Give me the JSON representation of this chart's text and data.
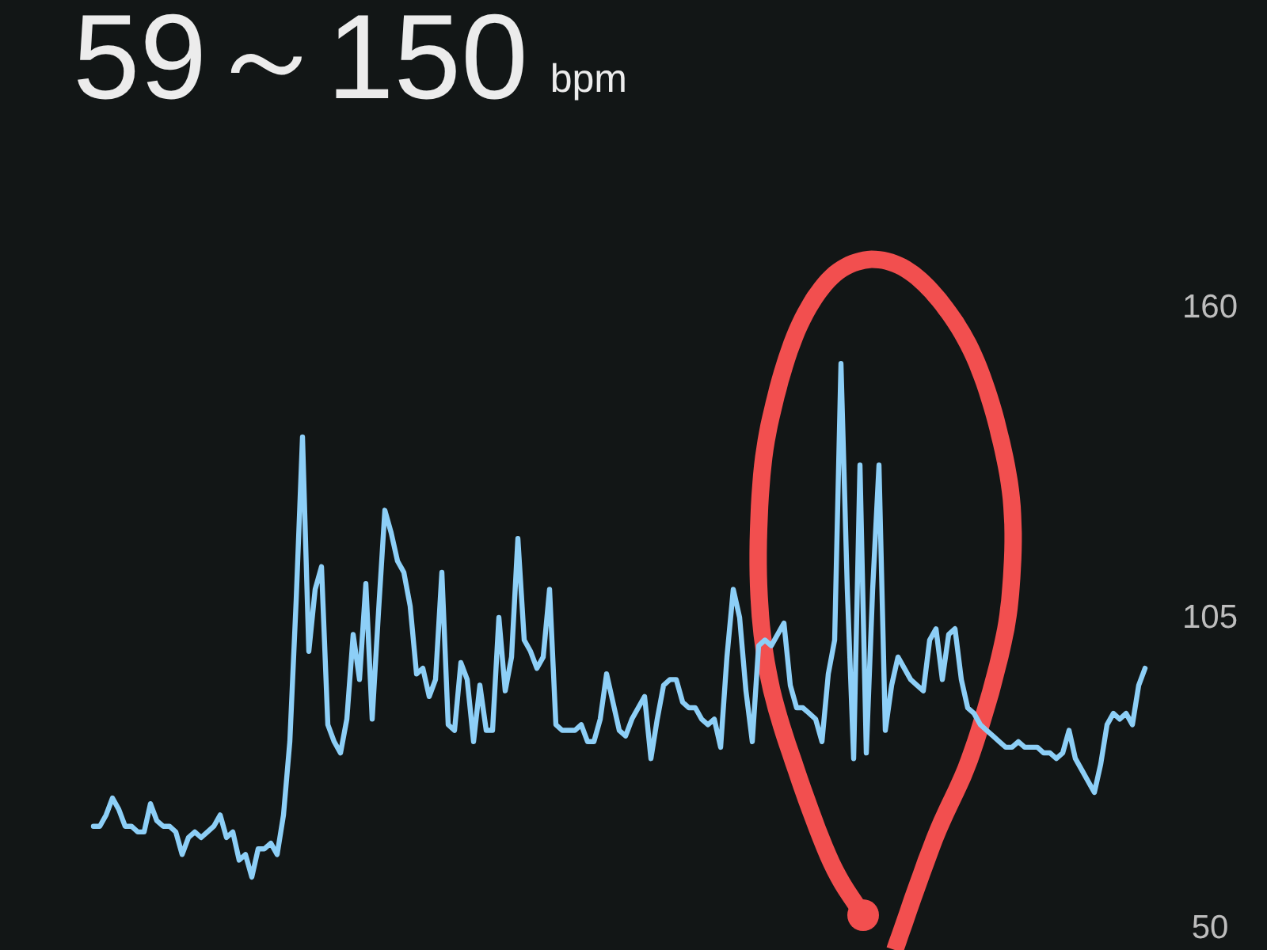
{
  "chart_data": {
    "type": "line",
    "title": "59～150",
    "subtitle": "bpm",
    "categories": [
      null,
      null,
      null,
      null,
      null,
      null,
      null,
      null,
      null,
      null,
      null,
      null,
      null,
      null,
      null,
      null,
      null,
      null,
      null,
      null,
      null,
      null,
      null,
      null,
      null,
      null,
      null,
      null,
      null,
      null,
      null,
      null,
      null,
      null,
      null,
      null,
      null,
      null,
      null,
      null,
      null,
      null,
      null,
      null,
      null,
      null,
      null,
      null,
      null,
      null,
      null,
      null,
      null,
      null,
      null,
      null,
      null,
      null,
      null,
      null,
      null,
      null,
      null,
      null,
      null,
      null,
      null,
      null,
      null,
      null,
      null,
      null,
      null,
      null,
      null,
      null,
      null,
      null,
      null,
      null,
      null,
      null,
      null,
      null,
      null,
      null,
      null,
      null,
      null,
      null,
      null,
      null,
      null,
      null,
      null,
      null,
      null,
      null,
      null,
      null,
      null,
      null,
      null,
      null,
      null,
      null,
      null,
      null,
      null,
      null,
      null,
      null,
      null,
      null,
      null,
      null,
      null,
      null,
      null,
      null,
      null,
      null,
      null,
      null,
      null,
      null,
      null,
      null,
      null,
      null,
      null,
      null,
      null,
      null,
      null,
      null,
      null,
      null,
      null,
      null,
      null,
      null,
      null,
      null,
      null,
      null,
      null,
      null,
      null,
      null,
      null,
      null,
      null,
      null,
      null,
      null,
      null,
      null,
      null,
      null,
      null,
      null,
      null,
      null,
      null,
      null,
      null
    ],
    "values": [
      68,
      68,
      70,
      73,
      71,
      68,
      68,
      67,
      67,
      72,
      69,
      68,
      68,
      67,
      63,
      66,
      67,
      66,
      67,
      68,
      70,
      66,
      67,
      62,
      63,
      59,
      64,
      64,
      65,
      63,
      70,
      83,
      108,
      137,
      99,
      110,
      114,
      86,
      83,
      81,
      87,
      102,
      94,
      111,
      87,
      106,
      124,
      120,
      115,
      113,
      107,
      95,
      96,
      91,
      94,
      113,
      86,
      85,
      97,
      94,
      83,
      93,
      85,
      85,
      105,
      92,
      98,
      119,
      101,
      99,
      96,
      98,
      110,
      86,
      85,
      85,
      85,
      86,
      83,
      83,
      87,
      95,
      90,
      85,
      84,
      87,
      89,
      91,
      80,
      87,
      93,
      94,
      94,
      90,
      89,
      89,
      87,
      86,
      87,
      82,
      98,
      110,
      105,
      92,
      83,
      100,
      101,
      100,
      102,
      104,
      93,
      89,
      89,
      88,
      87,
      83,
      95,
      101,
      150,
      110,
      80,
      132,
      81,
      110,
      132,
      85,
      93,
      98,
      96,
      94,
      93,
      92,
      101,
      103,
      94,
      102,
      103,
      94,
      89,
      88,
      86,
      85,
      84,
      83,
      82,
      82,
      83,
      82,
      82,
      82,
      81,
      81,
      80,
      81,
      85,
      80,
      78,
      76,
      74,
      79,
      86,
      88,
      87,
      88,
      86,
      93,
      96
    ],
    "color": "#8dcff7",
    "ylim": [
      50,
      160
    ],
    "yticks": [
      50,
      105,
      160
    ],
    "tick_labels": "y"
  }
}
